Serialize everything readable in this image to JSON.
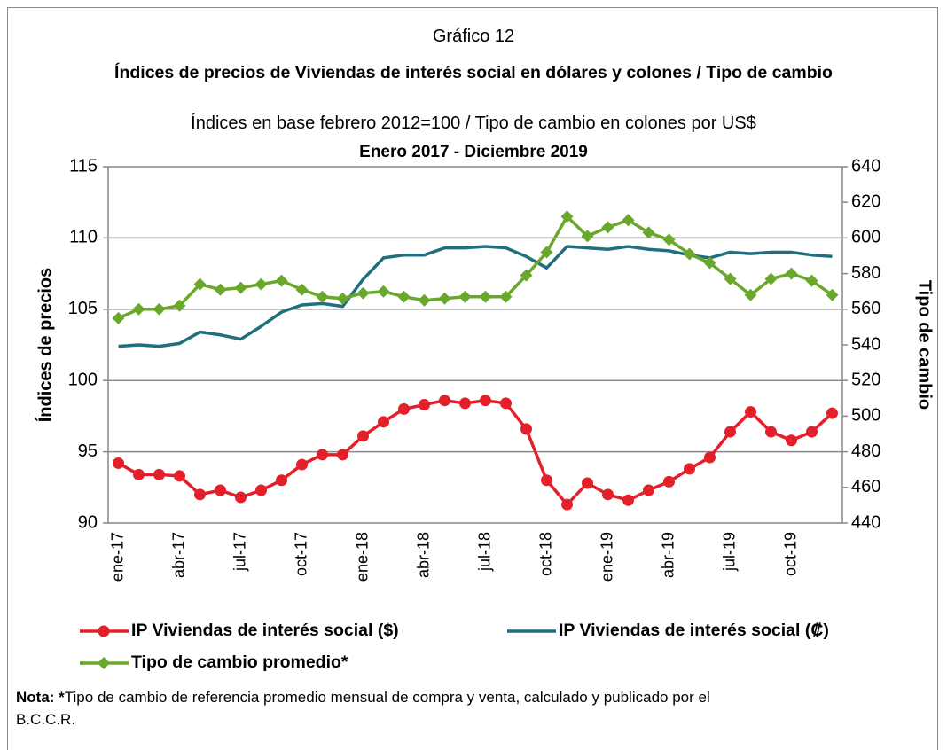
{
  "chart_data": {
    "type": "line",
    "pretitle": "Gráfico 12",
    "title": "Índices de precios de Viviendas de interés social en dólares y colones / Tipo de cambio",
    "subtitle": "Índices en base febrero 2012=100 / Tipo de cambio en colones por US$",
    "period": "Enero 2017 - Diciembre 2019",
    "ylabel": "Índices de precios",
    "y2label": "Tipo de cambio",
    "categories": [
      "ene-17",
      null,
      null,
      "abr-17",
      null,
      null,
      "jul-17",
      null,
      null,
      "oct-17",
      null,
      null,
      "ene-18",
      null,
      null,
      "abr-18",
      null,
      null,
      "jul-18",
      null,
      null,
      "oct-18",
      null,
      null,
      "ene-19",
      null,
      null,
      "abr-19",
      null,
      null,
      "jul-19",
      null,
      null,
      "oct-19",
      null,
      null
    ],
    "ylim": [
      90,
      115
    ],
    "yticks": [
      90,
      95,
      100,
      105,
      110,
      115
    ],
    "y2lim": [
      440,
      640
    ],
    "y2ticks": [
      440,
      460,
      480,
      500,
      520,
      540,
      560,
      580,
      600,
      620,
      640
    ],
    "grid": true,
    "series": [
      {
        "name": "IP Viviendas de interés social ($)",
        "color": "#e3202a",
        "marker": "circle",
        "values": [
          94.2,
          93.4,
          93.4,
          93.3,
          92.0,
          92.3,
          91.8,
          92.3,
          93.0,
          94.1,
          94.8,
          94.8,
          96.1,
          97.1,
          98.0,
          98.3,
          98.6,
          98.4,
          98.6,
          98.4,
          96.6,
          93.0,
          91.3,
          92.8,
          92.0,
          91.6,
          92.3,
          92.9,
          93.8,
          94.6,
          96.4,
          97.8,
          96.4,
          95.8,
          96.4,
          97.7
        ]
      },
      {
        "name": "IP Viviendas de interés social (₡)",
        "color": "#1f6f7f",
        "marker": "none",
        "values": [
          102.4,
          102.5,
          102.4,
          102.6,
          103.4,
          103.2,
          102.9,
          103.8,
          104.8,
          105.3,
          105.4,
          105.2,
          107.1,
          108.6,
          108.8,
          108.8,
          109.3,
          109.3,
          109.4,
          109.3,
          108.7,
          107.9,
          109.4,
          109.3,
          109.2,
          109.4,
          109.2,
          109.1,
          108.8,
          108.6,
          109.0,
          108.9,
          109.0,
          109.0,
          108.8,
          108.7
        ]
      },
      {
        "name": "Tipo de cambio promedio*",
        "color": "#6aa82c",
        "marker": "diamond",
        "axis": "y2",
        "values": [
          555,
          560,
          560,
          562,
          574,
          571,
          572,
          574,
          576,
          571,
          567,
          566,
          569,
          570,
          567,
          565,
          566,
          567,
          567,
          567,
          579,
          592,
          612,
          601,
          606,
          610,
          603,
          599,
          591,
          586,
          577,
          568,
          577,
          580,
          576,
          568
        ]
      }
    ],
    "note_label": "Nota: *",
    "note": "Tipo de cambio de referencia promedio mensual de compra y venta, calculado y publicado por el B.C.C.R."
  }
}
